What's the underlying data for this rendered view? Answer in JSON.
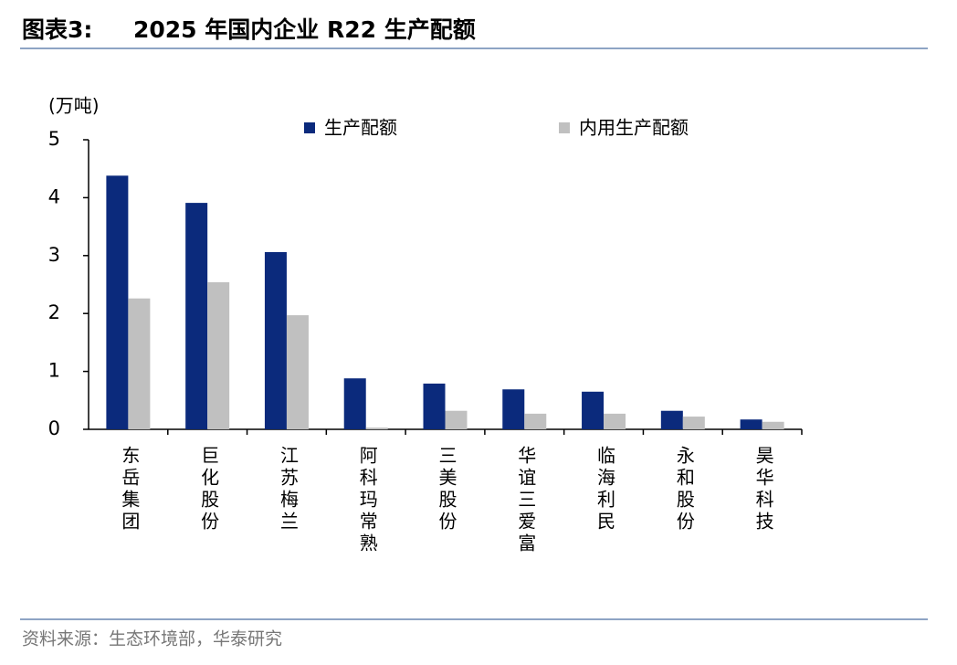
{
  "figure_label": "图表3:",
  "source": "资料来源：生态环境部，华泰研究",
  "chart_data": {
    "type": "bar",
    "title": "2025 年国内企业 R22 生产配额",
    "y_label": "(万吨)",
    "categories": [
      "东岳集团",
      "巨化股份",
      "江苏梅兰",
      "阿科玛常熟",
      "三美股份",
      "华谊三爱富",
      "临海利民",
      "永和股份",
      "昊华科技"
    ],
    "series": [
      {
        "name": "生产配额",
        "color": "#0b2a7c",
        "values": [
          4.38,
          3.91,
          3.06,
          0.88,
          0.79,
          0.69,
          0.65,
          0.32,
          0.17
        ]
      },
      {
        "name": "内用生产配额",
        "color": "#c0c0c0",
        "values": [
          2.26,
          2.54,
          1.97,
          0.03,
          0.32,
          0.27,
          0.27,
          0.22,
          0.13
        ]
      }
    ],
    "ylim": [
      0,
      5
    ],
    "yticks": [
      0,
      1,
      2,
      3,
      4,
      5
    ],
    "grid": false,
    "legend": "top"
  }
}
